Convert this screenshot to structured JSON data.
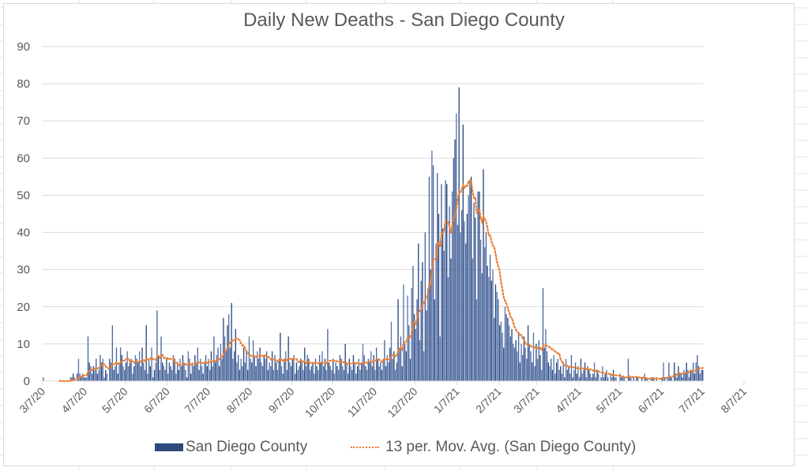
{
  "chart_data": {
    "type": "bar",
    "title": "Daily New Deaths - San Diego County",
    "xlabel": "",
    "ylabel": "",
    "ylim": [
      0,
      90
    ],
    "yticks": [
      0,
      10,
      20,
      30,
      40,
      50,
      60,
      70,
      80,
      90
    ],
    "grid": true,
    "legend_position": "bottom",
    "start_date": "3/7/20",
    "xtick_labels": [
      "3/7/20",
      "4/7/20",
      "5/7/20",
      "6/7/20",
      "7/7/20",
      "8/7/20",
      "9/7/20",
      "10/7/20",
      "11/7/20",
      "12/7/20",
      "1/7/21",
      "2/7/21",
      "3/7/21",
      "4/7/21",
      "5/7/21",
      "6/7/21",
      "7/7/21",
      "8/7/21"
    ],
    "xtick_day_offsets": [
      0,
      31,
      61,
      92,
      122,
      153,
      184,
      214,
      245,
      275,
      306,
      337,
      365,
      396,
      426,
      457,
      487,
      518
    ],
    "series": [
      {
        "name": "San Diego County",
        "type": "bar",
        "color": "#2c4a7e",
        "values": [
          1,
          0,
          0,
          0,
          0,
          0,
          0,
          0,
          0,
          0,
          0,
          0,
          0,
          0,
          0,
          0,
          0,
          0,
          0,
          0,
          1,
          1,
          2,
          1,
          0,
          2,
          6,
          2,
          1,
          2,
          1,
          1,
          1,
          12,
          5,
          4,
          2,
          4,
          3,
          6,
          2,
          3,
          7,
          5,
          6,
          1,
          3,
          2,
          0,
          6,
          5,
          15,
          3,
          4,
          9,
          2,
          5,
          9,
          7,
          4,
          3,
          5,
          8,
          4,
          5,
          6,
          2,
          4,
          7,
          6,
          5,
          8,
          4,
          9,
          5,
          3,
          15,
          2,
          6,
          4,
          9,
          1,
          3,
          5,
          19,
          7,
          3,
          12,
          5,
          4,
          3,
          6,
          2,
          5,
          4,
          3,
          7,
          6,
          2,
          5,
          3,
          6,
          4,
          7,
          5,
          3,
          1,
          8,
          6,
          2,
          5,
          4,
          7,
          5,
          9,
          3,
          6,
          4,
          2,
          5,
          7,
          4,
          6,
          3,
          8,
          4,
          12,
          5,
          7,
          9,
          4,
          10,
          6,
          17,
          12,
          8,
          15,
          18,
          9,
          21,
          6,
          8,
          14,
          5,
          7,
          3,
          6,
          4,
          9,
          5,
          8,
          3,
          12,
          6,
          5,
          11,
          7,
          4,
          8,
          6,
          9,
          5,
          4,
          7,
          6,
          8,
          3,
          5,
          4,
          8,
          3,
          7,
          5,
          3,
          6,
          13,
          4,
          2,
          6,
          8,
          3,
          12,
          5,
          4,
          6,
          7,
          2,
          5,
          3,
          4,
          6,
          5,
          3,
          9,
          4,
          7,
          6,
          3,
          4,
          5,
          2,
          6,
          4,
          3,
          7,
          5,
          8,
          4,
          6,
          3,
          14,
          5,
          4,
          3,
          6,
          2,
          5,
          4,
          3,
          7,
          6,
          4,
          3,
          10,
          5,
          2,
          6,
          4,
          3,
          7,
          5,
          2,
          4,
          6,
          3,
          5,
          10,
          7,
          4,
          3,
          6,
          5,
          8,
          4,
          7,
          3,
          9,
          6,
          4,
          5,
          3,
          6,
          11,
          4,
          7,
          5,
          9,
          16,
          6,
          8,
          3,
          5,
          22,
          9,
          12,
          4,
          26,
          10,
          8,
          23,
          15,
          6,
          25,
          31,
          18,
          14,
          22,
          37,
          11,
          27,
          32,
          8,
          40,
          19,
          25,
          55,
          30,
          62,
          58,
          22,
          37,
          56,
          45,
          12,
          53,
          41,
          35,
          54,
          53,
          28,
          47,
          33,
          51,
          60,
          65,
          72,
          42,
          79,
          40,
          46,
          69,
          43,
          37,
          45,
          50,
          54,
          55,
          33,
          48,
          44,
          22,
          51,
          51,
          38,
          29,
          57,
          36,
          40,
          31,
          28,
          34,
          27,
          30,
          17,
          26,
          24,
          22,
          15,
          16,
          13,
          9,
          20,
          18,
          17,
          15,
          12,
          14,
          10,
          9,
          11,
          8,
          13,
          5,
          10,
          7,
          12,
          9,
          6,
          15,
          10,
          8,
          5,
          13,
          4,
          10,
          6,
          11,
          7,
          3,
          25,
          9,
          14,
          8,
          5,
          4,
          6,
          3,
          7,
          2,
          5,
          6,
          3,
          4,
          2,
          5,
          1,
          6,
          3,
          4,
          2,
          7,
          1,
          3,
          5,
          2,
          4,
          1,
          6,
          2,
          3,
          5,
          1,
          4,
          3,
          2,
          1,
          2,
          5,
          1,
          3,
          2,
          0,
          1,
          4,
          1,
          2,
          3,
          1,
          0,
          2,
          1,
          3,
          1,
          1,
          0,
          0,
          2,
          1,
          1,
          1,
          0,
          0,
          6,
          1,
          1,
          0,
          1,
          0,
          1,
          1,
          0,
          0,
          1,
          0,
          2,
          1,
          1,
          0,
          0,
          1,
          1,
          1,
          0,
          1,
          0,
          0,
          0,
          1,
          5,
          1,
          0,
          1,
          5,
          1,
          1,
          0,
          5,
          2,
          1,
          4,
          2,
          2,
          1,
          3,
          2,
          5,
          3,
          1,
          3,
          3,
          5,
          2,
          5,
          7,
          4,
          2,
          3,
          3
        ]
      },
      {
        "name": "13 per. Mov. Avg. (San Diego County)",
        "type": "line",
        "period": 13,
        "color": "#ed7d31",
        "style": "dotted"
      }
    ]
  },
  "legend": {
    "bar_label": "San Diego County",
    "line_label": "13 per. Mov. Avg. (San Diego County)"
  }
}
